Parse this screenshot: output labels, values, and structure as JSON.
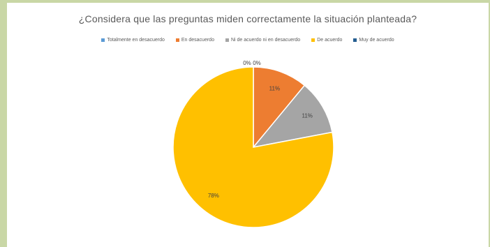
{
  "chart_data": {
    "type": "pie",
    "title": "¿Considera que las preguntas miden correctamente la situación planteada?",
    "legend_position": "top",
    "slices": [
      {
        "name": "Totalmente en desacuerdo",
        "value": 0,
        "label": "0%",
        "color": "#5b9bd5"
      },
      {
        "name": "En desacuerdo",
        "value": 11,
        "label": "11%",
        "color": "#ed7d31"
      },
      {
        "name": "Ni de acuerdo ni en desacuerdo",
        "value": 11,
        "label": "11%",
        "color": "#a5a5a5"
      },
      {
        "name": "De acuerdo",
        "value": 78,
        "label": "78%",
        "color": "#ffc000"
      },
      {
        "name": "Muy de acuerdo",
        "value": 0,
        "label": "0%",
        "color": "#255e91"
      }
    ]
  }
}
